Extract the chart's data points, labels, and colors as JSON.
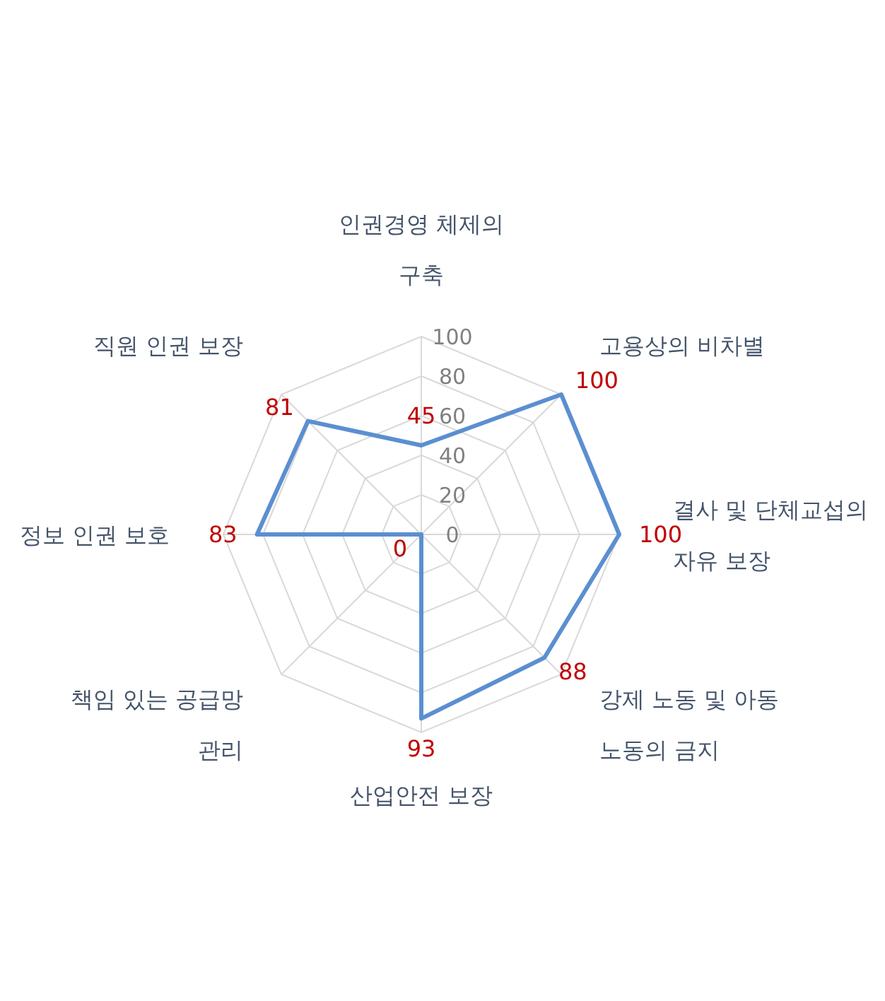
{
  "chart_data": {
    "type": "radar",
    "categories": [
      "인권경영 체제의 구축",
      "고용상의 비차별",
      "결사 및 단체교섭의 자유 보장",
      "강제 노동 및 아동 노동의 금지",
      "산업안전 보장",
      "책임 있는 공급망 관리",
      "정보 인권 보호",
      "직원 인권 보장"
    ],
    "series": [
      {
        "color": "#5b8fd0",
        "values": [
          45,
          100,
          100,
          88,
          93,
          0,
          83,
          81
        ]
      }
    ],
    "ylim": [
      0,
      100
    ],
    "yticks": [
      0,
      20,
      40,
      60,
      80,
      100
    ],
    "grid": true,
    "data_labels": true,
    "legend": false
  }
}
